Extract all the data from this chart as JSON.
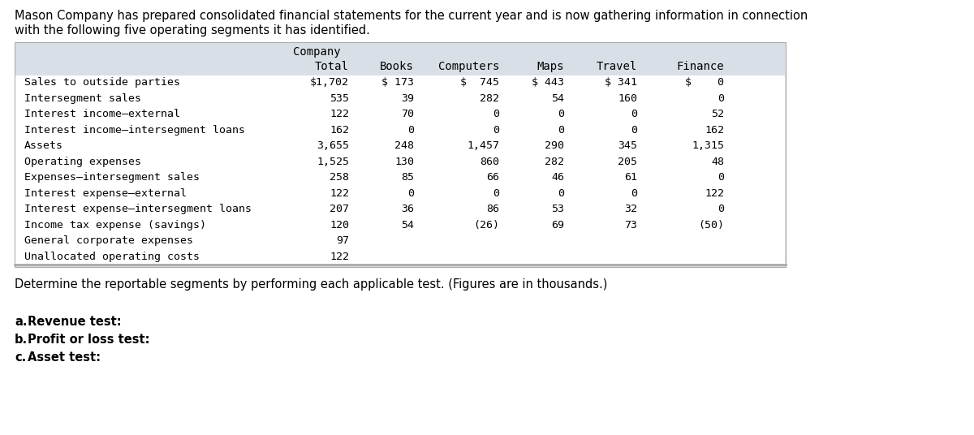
{
  "header_line1": "Mason Company has prepared consolidated financial statements for the current year and is now gathering information in connection",
  "header_line2": "with the following five operating segments it has identified.",
  "col_header1": "Company",
  "col_header2": "Total",
  "seg_headers": [
    "Books",
    "Computers",
    "Maps",
    "Travel",
    "Finance"
  ],
  "row_labels": [
    "Sales to outside parties",
    "Intersegment sales",
    "Interest income–external",
    "Interest income–intersegment loans",
    "Assets",
    "Operating expenses",
    "Expenses–intersegment sales",
    "Interest expense–external",
    "Interest expense–intersegment loans",
    "Income tax expense (savings)",
    "General corporate expenses",
    "Unallocated operating costs"
  ],
  "data": [
    [
      "$1,702",
      "$ 173",
      "$  745",
      "$ 443",
      "$ 341",
      "$    0"
    ],
    [
      "535",
      "39",
      "282",
      "54",
      "160",
      "0"
    ],
    [
      "122",
      "70",
      "0",
      "0",
      "0",
      "52"
    ],
    [
      "162",
      "0",
      "0",
      "0",
      "0",
      "162"
    ],
    [
      "3,655",
      "248",
      "1,457",
      "290",
      "345",
      "1,315"
    ],
    [
      "1,525",
      "130",
      "860",
      "282",
      "205",
      "48"
    ],
    [
      "258",
      "85",
      "66",
      "46",
      "61",
      "0"
    ],
    [
      "122",
      "0",
      "0",
      "0",
      "0",
      "122"
    ],
    [
      "207",
      "36",
      "86",
      "53",
      "32",
      "0"
    ],
    [
      "120",
      "54",
      "(26)",
      "69",
      "73",
      "(50)"
    ],
    [
      "97",
      "",
      "",
      "",
      "",
      ""
    ],
    [
      "122",
      "",
      "",
      "",
      "",
      ""
    ]
  ],
  "bottom_text": "Determine the reportable segments by performing each applicable test. (Figures are in thousands.)",
  "test_letters": [
    "a.",
    "b.",
    "c."
  ],
  "test_names": [
    "Revenue test:",
    "Profit or loss test:",
    "Asset test:"
  ],
  "table_bg": "#d9dfe6",
  "white": "#ffffff",
  "border_color": "#aaaaaa",
  "font_mono": "monospace",
  "font_sans": "DejaVu Sans",
  "fs_header": 10,
  "fs_body": 9.5,
  "fs_para": 10.5
}
